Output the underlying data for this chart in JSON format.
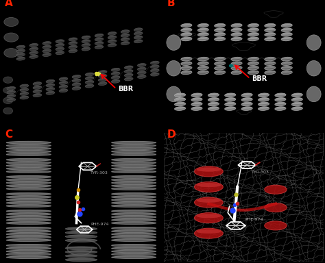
{
  "figure_width": 4.74,
  "figure_height": 3.84,
  "dpi": 100,
  "background_color": "#000000",
  "panels": {
    "A": {
      "label": "A",
      "label_color": "#ff2200",
      "bbr_label": "BBR",
      "bbr_color": "#ffffff",
      "arrow_color": "#ff0000",
      "bbr_ligand_color": "#cccc00",
      "bg_color": "#000000",
      "helix_color": "#444444",
      "helix_edge": "#666666"
    },
    "B": {
      "label": "B",
      "label_color": "#ff2200",
      "bbr_label": "BBR",
      "bbr_color": "#ffffff",
      "arrow_color": "#ff0000",
      "bg_color": "#080808",
      "helix_color": "#aaaaaa",
      "helix_edge": "#cccccc"
    },
    "C": {
      "label": "C",
      "label_color": "#ff2200",
      "phe_label": "PHE-974",
      "tyr_label": "TYR-303",
      "label_color_annot": "#aaaaaa",
      "bg_color": "#000000",
      "helix_color": "#555555",
      "helix_edge": "#777777",
      "helix_highlight": "#6a6a6a"
    },
    "D": {
      "label": "D",
      "label_color": "#ff2200",
      "phe_label": "PHE-974",
      "tyr_label": "TYR-303",
      "label_color_annot": "#aaaaaa",
      "bg_color": "#000000",
      "mesh_color": "#888888",
      "helix_color_red": "#aa1111",
      "helix_edge_red": "#cc3333"
    }
  }
}
